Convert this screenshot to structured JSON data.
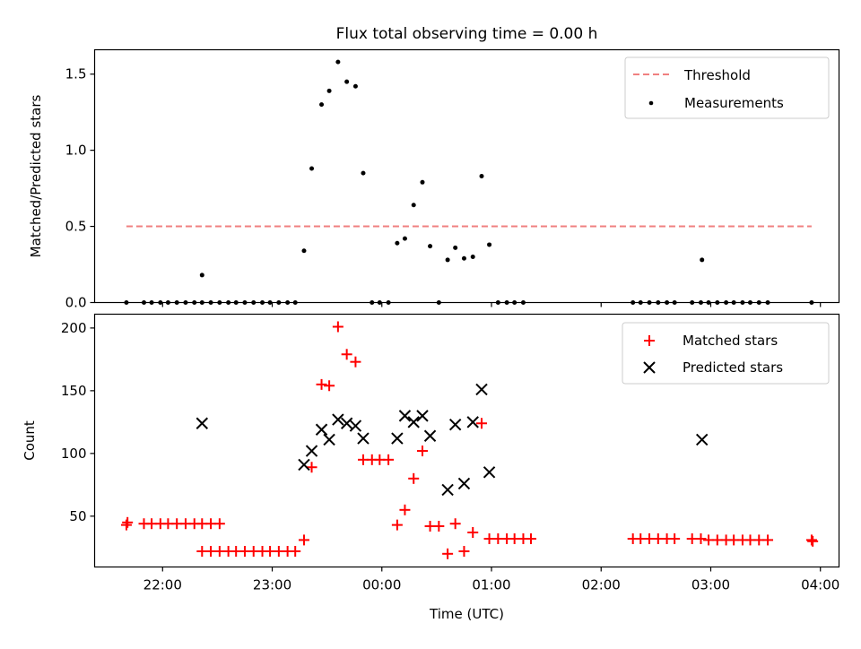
{
  "chart_data": [
    {
      "type": "scatter",
      "title": "Flux total observing time = 0.00 h",
      "ylabel": "Matched/Predicted stars",
      "xlim": [
        21.38,
        28.17
      ],
      "ylim": [
        0,
        1.66
      ],
      "yticks": [
        0.0,
        0.5,
        1.0,
        1.5
      ],
      "ytick_labels": [
        "0.0",
        "0.5",
        "1.0",
        "1.5"
      ],
      "xticks": [
        22,
        23,
        24,
        25,
        26,
        27,
        28
      ],
      "legend": [
        "Threshold",
        "Measurements"
      ],
      "legend_position": "upper right",
      "threshold": {
        "name": "Threshold",
        "value": 0.5,
        "x_range": [
          21.67,
          27.92
        ],
        "color": "#f08080"
      },
      "series": [
        {
          "name": "Measurements",
          "color": "#000000",
          "points": [
            [
              21.67,
              0
            ],
            [
              21.83,
              0
            ],
            [
              21.9,
              0
            ],
            [
              21.98,
              0
            ],
            [
              22.05,
              0
            ],
            [
              22.13,
              0
            ],
            [
              22.21,
              0
            ],
            [
              22.29,
              0
            ],
            [
              22.36,
              0
            ],
            [
              22.44,
              0
            ],
            [
              22.52,
              0
            ],
            [
              22.36,
              0.18
            ],
            [
              22.6,
              0
            ],
            [
              22.67,
              0
            ],
            [
              22.75,
              0
            ],
            [
              22.83,
              0
            ],
            [
              22.91,
              0
            ],
            [
              22.98,
              0
            ],
            [
              23.06,
              0
            ],
            [
              23.14,
              0
            ],
            [
              23.21,
              0
            ],
            [
              23.29,
              0.34
            ],
            [
              23.36,
              0.88
            ],
            [
              23.45,
              1.3
            ],
            [
              23.52,
              1.39
            ],
            [
              23.6,
              1.58
            ],
            [
              23.68,
              1.45
            ],
            [
              23.76,
              1.42
            ],
            [
              23.83,
              0.85
            ],
            [
              23.91,
              0
            ],
            [
              23.98,
              0
            ],
            [
              24.06,
              0
            ],
            [
              24.14,
              0.39
            ],
            [
              24.21,
              0.42
            ],
            [
              24.29,
              0.64
            ],
            [
              24.37,
              0.79
            ],
            [
              24.44,
              0.37
            ],
            [
              24.52,
              0
            ],
            [
              24.6,
              0.28
            ],
            [
              24.67,
              0.36
            ],
            [
              24.75,
              0.29
            ],
            [
              24.83,
              0.3
            ],
            [
              24.91,
              0.83
            ],
            [
              24.98,
              0.38
            ],
            [
              25.06,
              0
            ],
            [
              25.14,
              0
            ],
            [
              25.21,
              0
            ],
            [
              25.29,
              0
            ],
            [
              26.29,
              0
            ],
            [
              26.36,
              0
            ],
            [
              26.44,
              0
            ],
            [
              26.52,
              0
            ],
            [
              26.6,
              0
            ],
            [
              26.67,
              0
            ],
            [
              26.83,
              0
            ],
            [
              26.91,
              0
            ],
            [
              26.92,
              0.28
            ],
            [
              26.98,
              0
            ],
            [
              27.06,
              0
            ],
            [
              27.14,
              0
            ],
            [
              27.21,
              0
            ],
            [
              27.29,
              0
            ],
            [
              27.36,
              0
            ],
            [
              27.44,
              0
            ],
            [
              27.52,
              0
            ],
            [
              27.92,
              0
            ]
          ]
        }
      ]
    },
    {
      "type": "scatter",
      "title": "",
      "xlabel": "Time (UTC)",
      "ylabel": "Count",
      "xlim": [
        21.38,
        28.17
      ],
      "ylim": [
        9.5,
        211
      ],
      "yticks": [
        50,
        100,
        150,
        200
      ],
      "ytick_labels": [
        "50",
        "100",
        "150",
        "200"
      ],
      "xticks": [
        22,
        23,
        24,
        25,
        26,
        27,
        28
      ],
      "xtick_labels": [
        "22:00",
        "23:00",
        "00:00",
        "01:00",
        "02:00",
        "03:00",
        "04:00"
      ],
      "legend": [
        "Matched stars",
        "Predicted stars"
      ],
      "legend_position": "upper right",
      "series": [
        {
          "name": "Matched stars",
          "marker": "plus",
          "color": "#ff0000",
          "points": [
            [
              21.67,
              43
            ],
            [
              21.68,
              45
            ],
            [
              21.83,
              44
            ],
            [
              21.9,
              44
            ],
            [
              21.98,
              44
            ],
            [
              22.05,
              44
            ],
            [
              22.13,
              44
            ],
            [
              22.21,
              44
            ],
            [
              22.29,
              44
            ],
            [
              22.36,
              44
            ],
            [
              22.44,
              44
            ],
            [
              22.52,
              44
            ],
            [
              22.36,
              22
            ],
            [
              22.44,
              22
            ],
            [
              22.52,
              22
            ],
            [
              22.6,
              22
            ],
            [
              22.67,
              22
            ],
            [
              22.75,
              22
            ],
            [
              22.83,
              22
            ],
            [
              22.91,
              22
            ],
            [
              22.98,
              22
            ],
            [
              23.06,
              22
            ],
            [
              23.14,
              22
            ],
            [
              23.21,
              22
            ],
            [
              23.29,
              31
            ],
            [
              23.36,
              89
            ],
            [
              23.45,
              155
            ],
            [
              23.52,
              154
            ],
            [
              23.6,
              201
            ],
            [
              23.68,
              179
            ],
            [
              23.76,
              173
            ],
            [
              23.83,
              95
            ],
            [
              23.91,
              95
            ],
            [
              23.98,
              95
            ],
            [
              24.06,
              95
            ],
            [
              24.14,
              43
            ],
            [
              24.21,
              55
            ],
            [
              24.29,
              80
            ],
            [
              24.37,
              102
            ],
            [
              24.44,
              42
            ],
            [
              24.52,
              42
            ],
            [
              24.6,
              20
            ],
            [
              24.67,
              44
            ],
            [
              24.75,
              22
            ],
            [
              24.83,
              37
            ],
            [
              24.91,
              124
            ],
            [
              24.98,
              32
            ],
            [
              25.06,
              32
            ],
            [
              25.14,
              32
            ],
            [
              25.21,
              32
            ],
            [
              25.29,
              32
            ],
            [
              25.36,
              32
            ],
            [
              26.29,
              32
            ],
            [
              26.36,
              32
            ],
            [
              26.44,
              32
            ],
            [
              26.52,
              32
            ],
            [
              26.6,
              32
            ],
            [
              26.67,
              32
            ],
            [
              26.83,
              32
            ],
            [
              26.91,
              32
            ],
            [
              26.98,
              31
            ],
            [
              27.06,
              31
            ],
            [
              27.14,
              31
            ],
            [
              27.21,
              31
            ],
            [
              27.29,
              31
            ],
            [
              27.36,
              31
            ],
            [
              27.44,
              31
            ],
            [
              27.52,
              31
            ],
            [
              27.92,
              31
            ],
            [
              27.93,
              30
            ]
          ]
        },
        {
          "name": "Predicted stars",
          "marker": "x",
          "color": "#000000",
          "points": [
            [
              22.36,
              124
            ],
            [
              23.29,
              91
            ],
            [
              23.36,
              102
            ],
            [
              23.45,
              119
            ],
            [
              23.52,
              111
            ],
            [
              23.6,
              127
            ],
            [
              23.68,
              124
            ],
            [
              23.76,
              122
            ],
            [
              23.83,
              112
            ],
            [
              24.14,
              112
            ],
            [
              24.21,
              130
            ],
            [
              24.29,
              125
            ],
            [
              24.37,
              130
            ],
            [
              24.44,
              114
            ],
            [
              24.6,
              71
            ],
            [
              24.67,
              123
            ],
            [
              24.75,
              76
            ],
            [
              24.83,
              125
            ],
            [
              24.91,
              151
            ],
            [
              24.98,
              85
            ],
            [
              26.92,
              111
            ]
          ]
        }
      ]
    }
  ]
}
